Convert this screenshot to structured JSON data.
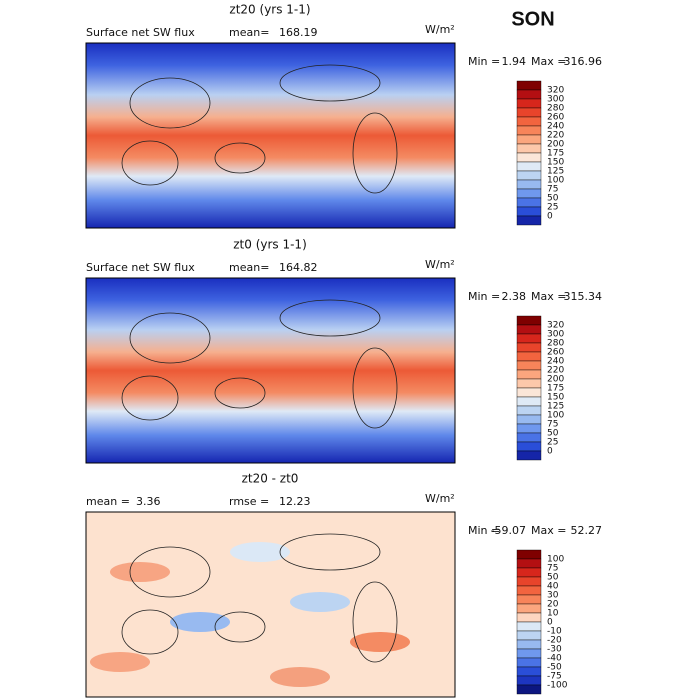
{
  "season": "SON",
  "panels": [
    {
      "title": "zt20 (yrs 1-1)",
      "subtitle": "Surface net SW flux",
      "stats": [
        {
          "label": "mean=",
          "value": 168.19
        }
      ],
      "unit": "W/m²",
      "min_label": "Min =",
      "min": 1.94,
      "max_label": "Max =",
      "max": 316.96,
      "levels": [
        320,
        300,
        280,
        260,
        240,
        220,
        200,
        175,
        150,
        125,
        100,
        75,
        50,
        25,
        0
      ],
      "colors": [
        "#7f0000",
        "#b30f12",
        "#d7261c",
        "#e8442b",
        "#f2643f",
        "#f7845a",
        "#fba67e",
        "#fdc8aa",
        "#fbe6d8",
        "#dfeaf6",
        "#bcd4f2",
        "#98baf0",
        "#6f98ee",
        "#4a73e6",
        "#2a4ed8",
        "#1525a8"
      ]
    },
    {
      "title": "zt0 (yrs 1-1)",
      "subtitle": "Surface net SW flux",
      "stats": [
        {
          "label": "mean=",
          "value": 164.82
        }
      ],
      "unit": "W/m²",
      "min_label": "Min =",
      "min": 2.38,
      "max_label": "Max =",
      "max": 315.34,
      "levels": [
        320,
        300,
        280,
        260,
        240,
        220,
        200,
        175,
        150,
        125,
        100,
        75,
        50,
        25,
        0
      ],
      "colors": [
        "#7f0000",
        "#b30f12",
        "#d7261c",
        "#e8442b",
        "#f2643f",
        "#f7845a",
        "#fba67e",
        "#fdc8aa",
        "#fbe6d8",
        "#dfeaf6",
        "#bcd4f2",
        "#98baf0",
        "#6f98ee",
        "#4a73e6",
        "#2a4ed8",
        "#1525a8"
      ]
    },
    {
      "title": "zt20 - zt0",
      "stats": [
        {
          "label": "mean =",
          "value": 3.36
        },
        {
          "label": "rmse =",
          "value": 12.23
        }
      ],
      "unit": "W/m²",
      "min_label": "Min =",
      "min": -59.07,
      "max_label": "Max =",
      "max": 52.27,
      "levels": [
        100,
        75,
        50,
        40,
        30,
        20,
        10,
        0,
        -10,
        -20,
        -30,
        -40,
        -50,
        -75,
        -100
      ],
      "colors": [
        "#7f0000",
        "#b30f12",
        "#d7261c",
        "#e8442b",
        "#f2643f",
        "#f7845a",
        "#fba67e",
        "#fdd5bf",
        "#dbe8f6",
        "#bcd4f2",
        "#98baf0",
        "#6f98ee",
        "#4a73e6",
        "#2a4ed8",
        "#1d35c0",
        "#0c1680"
      ]
    }
  ]
}
